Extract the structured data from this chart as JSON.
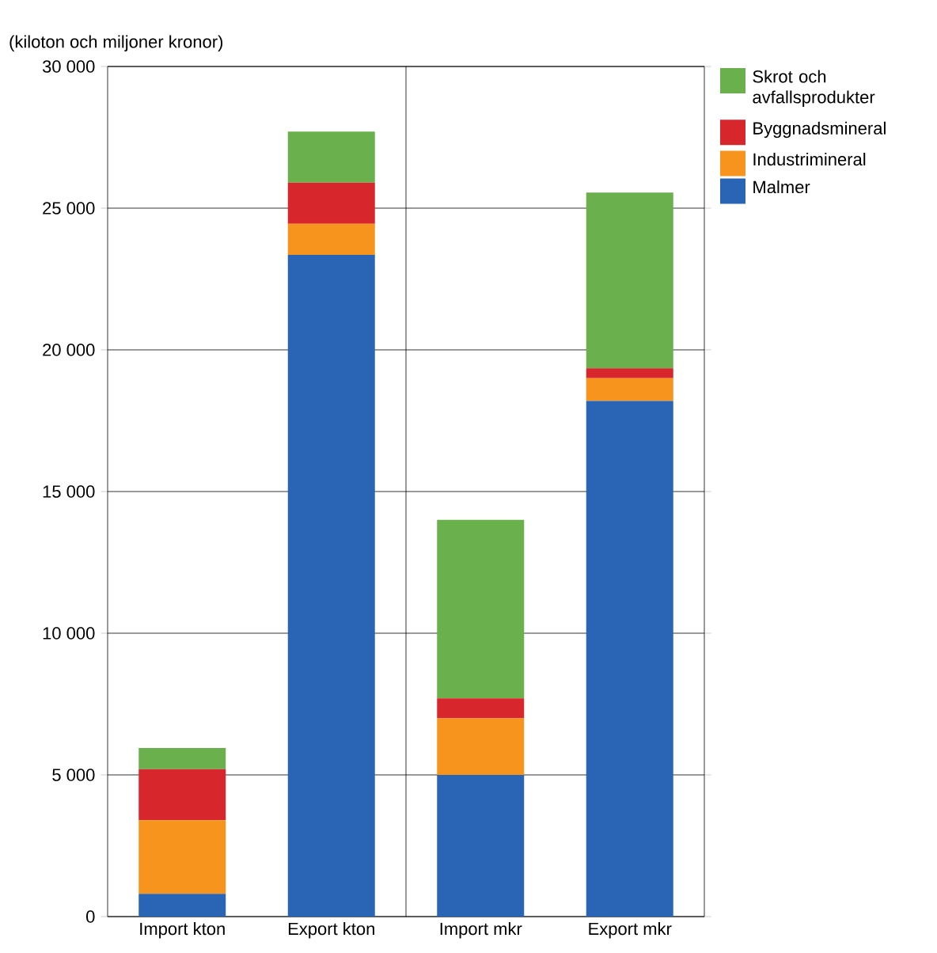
{
  "chart_data": {
    "type": "bar",
    "stacked": true,
    "ylabel": "(kiloton och miljoner kronor)",
    "categories": [
      "Import kton",
      "Export kton",
      "Import mkr",
      "Export mkr"
    ],
    "series": [
      {
        "name": "Malmer",
        "color": "#2a64b4",
        "values": [
          800,
          23350,
          5000,
          18200
        ]
      },
      {
        "name": "Industrimineral",
        "color": "#f7941d",
        "values": [
          2600,
          1100,
          2000,
          800
        ]
      },
      {
        "name": "Byggnadsmineral",
        "color": "#d7262c",
        "values": [
          1800,
          1450,
          700,
          350
        ]
      },
      {
        "name": "Skrot och avfallsprodukter",
        "color": "#6ab04c",
        "values": [
          750,
          1800,
          6300,
          6200
        ]
      }
    ],
    "ylim": [
      0,
      30000
    ],
    "yticks": [
      {
        "value": 0,
        "label": "0"
      },
      {
        "value": 5000,
        "label": "5 000"
      },
      {
        "value": 10000,
        "label": "10 000"
      },
      {
        "value": 15000,
        "label": "15 000"
      },
      {
        "value": 20000,
        "label": "20 000"
      },
      {
        "value": 25000,
        "label": "25 000"
      },
      {
        "value": 30000,
        "label": "30 000"
      }
    ],
    "grid": "y",
    "legend": "top right"
  }
}
